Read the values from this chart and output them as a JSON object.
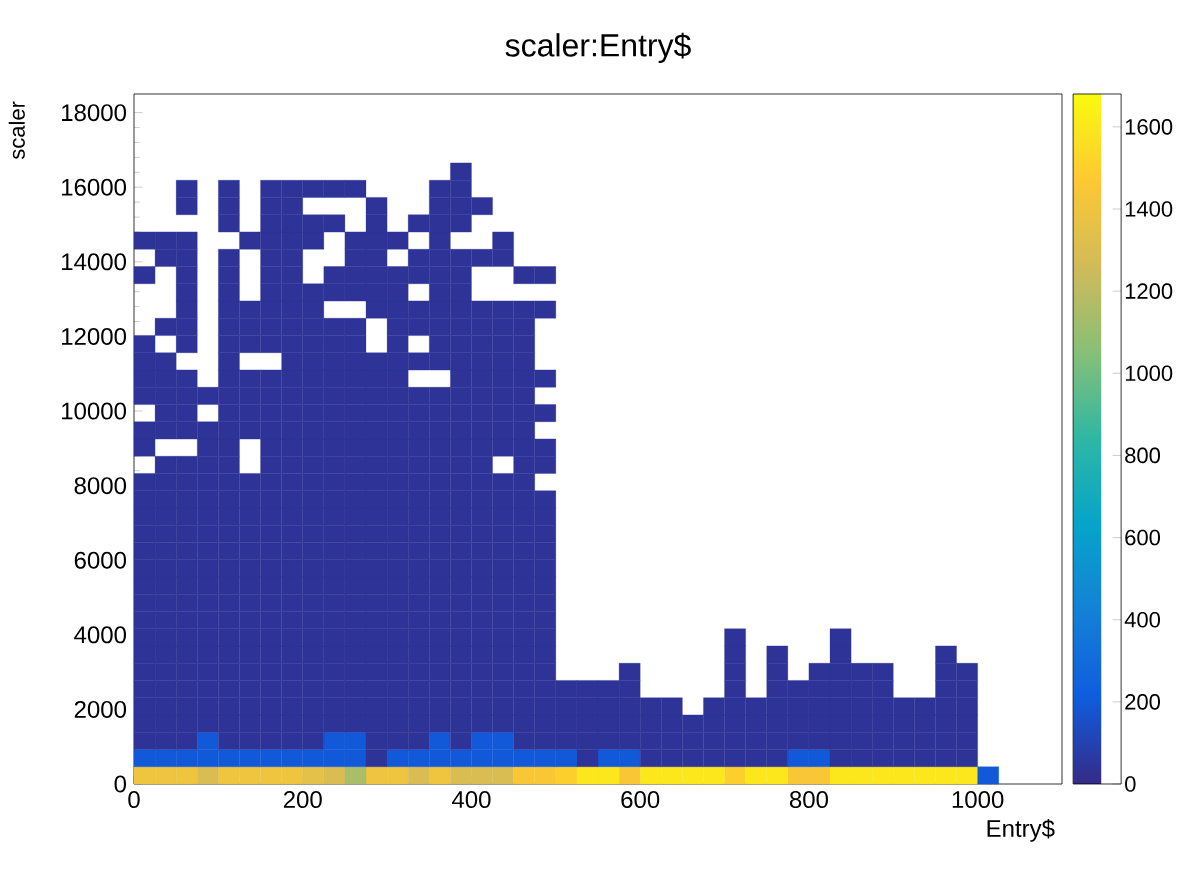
{
  "chart_data": {
    "type": "scatter",
    "title": "scaler:Entry$",
    "xlabel": "Entry$",
    "ylabel": "scaler",
    "marker": "square",
    "xlim": [
      0,
      1100
    ],
    "xticks": [
      0,
      200,
      400,
      600,
      800,
      1000
    ],
    "ylim": [
      0,
      18500
    ],
    "yticks": [
      0,
      2000,
      4000,
      6000,
      8000,
      10000,
      12000,
      14000,
      16000,
      18000
    ],
    "clim": [
      0,
      1680
    ],
    "cticks": [
      0,
      200,
      400,
      600,
      800,
      1000,
      1200,
      1400,
      1600
    ],
    "series": [
      {
        "x": [
          12.5,
          37.5,
          62.5,
          112.5,
          137.5,
          162.5,
          187.5,
          287.5,
          312.5,
          362.5
        ],
        "values": [
          231,
          231,
          231,
          231,
          231,
          231,
          231,
          231,
          231,
          231
        ],
        "cvalues": [
          1400,
          1400,
          1400,
          1400,
          1400,
          1400,
          1400,
          1400,
          1400,
          1400
        ]
      },
      {
        "x": [
          87.5,
          237.5,
          337.5,
          387.5,
          412.5,
          437.5
        ],
        "values": [
          231,
          231,
          231,
          231,
          231,
          231
        ],
        "cvalues": [
          1300,
          1300,
          1300,
          1300,
          1300,
          1300
        ]
      },
      {
        "x": [
          212.5
        ],
        "values": [
          231
        ],
        "cvalues": [
          1350
        ]
      },
      {
        "x": [
          262.5
        ],
        "values": [
          231
        ],
        "cvalues": [
          1150
        ]
      },
      {
        "x": [
          462.5,
          487.5,
          587.5,
          787.5,
          812.5
        ],
        "values": [
          231,
          231,
          231,
          231,
          231
        ],
        "cvalues": [
          1450,
          1450,
          1450,
          1450,
          1450
        ]
      },
      {
        "x": [
          512.5,
          712.5
        ],
        "values": [
          231,
          231
        ],
        "cvalues": [
          1500,
          1500
        ]
      },
      {
        "x": [
          537.5,
          562.5,
          612.5,
          637.5,
          662.5,
          687.5,
          737.5,
          762.5,
          837.5,
          862.5,
          887.5,
          912.5,
          937.5,
          962.5,
          987.5
        ],
        "values": [
          231,
          231,
          231,
          231,
          231,
          231,
          231,
          231,
          231,
          231,
          231,
          231,
          231,
          231,
          231
        ],
        "cvalues": [
          1600,
          1600,
          1600,
          1600,
          1600,
          1600,
          1600,
          1600,
          1600,
          1600,
          1600,
          1600,
          1600,
          1600,
          1600
        ]
      },
      {
        "x": [
          1012.5
        ],
        "values": [
          231
        ],
        "cvalues": [
          200
        ]
      },
      {
        "x": [
          12.5,
          37.5,
          62.5,
          87.5,
          112.5,
          137.5,
          162.5,
          187.5,
          212.5,
          237.5,
          262.5,
          312.5,
          337.5,
          362.5,
          387.5,
          412.5,
          437.5,
          462.5,
          487.5,
          512.5,
          562.5,
          587.5,
          787.5,
          812.5
        ],
        "values": [
          694,
          694,
          694,
          694,
          694,
          694,
          694,
          694,
          694,
          694,
          694,
          694,
          694,
          694,
          694,
          694,
          694,
          694,
          694,
          694,
          694,
          694,
          694,
          694
        ],
        "cvalues": [
          200,
          200,
          200,
          200,
          200,
          200,
          200,
          200,
          200,
          200,
          200,
          200,
          200,
          200,
          200,
          200,
          200,
          200,
          200,
          200,
          200,
          200,
          200,
          200
        ]
      },
      {
        "x": [
          287.5,
          537.5,
          612.5,
          637.5,
          662.5,
          687.5,
          712.5,
          737.5,
          762.5,
          837.5,
          862.5,
          887.5,
          912.5,
          937.5,
          962.5,
          987.5
        ],
        "values": [
          694,
          694,
          694,
          694,
          694,
          694,
          694,
          694,
          694,
          694,
          694,
          694,
          694,
          694,
          694,
          694
        ],
        "cvalues": [
          40,
          40,
          40,
          40,
          40,
          40,
          40,
          40,
          40,
          40,
          40,
          40,
          40,
          40,
          40,
          40
        ]
      },
      {
        "x": [
          87.5,
          237.5,
          262.5,
          362.5,
          412.5,
          437.5
        ],
        "values": [
          1156,
          1156,
          1156,
          1156,
          1156,
          1156
        ],
        "cvalues": [
          200,
          200,
          200,
          200,
          200,
          200
        ]
      },
      {
        "x": [
          12.5,
          37.5,
          62.5,
          112.5,
          137.5,
          162.5,
          187.5,
          212.5,
          287.5,
          312.5,
          337.5,
          387.5,
          462.5,
          487.5,
          512.5,
          537.5,
          562.5,
          587.5,
          612.5,
          637.5,
          662.5,
          687.5,
          712.5,
          737.5,
          762.5,
          787.5,
          812.5,
          837.5,
          862.5,
          887.5,
          912.5,
          937.5,
          962.5,
          987.5
        ],
        "values": [
          1156,
          1156,
          1156,
          1156,
          1156,
          1156,
          1156,
          1156,
          1156,
          1156,
          1156,
          1156,
          1156,
          1156,
          1156,
          1156,
          1156,
          1156,
          1156,
          1156,
          1156,
          1156,
          1156,
          1156,
          1156,
          1156,
          1156,
          1156,
          1156,
          1156,
          1156,
          1156,
          1156,
          1156
        ],
        "cvalues": [
          40,
          40,
          40,
          40,
          40,
          40,
          40,
          40,
          40,
          40,
          40,
          40,
          40,
          40,
          40,
          40,
          40,
          40,
          40,
          40,
          40,
          40,
          40,
          40,
          40,
          40,
          40,
          40,
          40,
          40,
          40,
          40,
          40,
          40
        ]
      },
      {
        "x": [
          12.5,
          37.5,
          62.5,
          87.5,
          112.5,
          137.5,
          162.5,
          187.5,
          212.5,
          237.5,
          262.5,
          287.5,
          312.5,
          337.5,
          362.5,
          387.5,
          412.5,
          437.5,
          462.5,
          487.5,
          512.5,
          537.5,
          562.5,
          587.5,
          612.5,
          637.5,
          662.5,
          687.5,
          712.5,
          737.5,
          762.5,
          787.5,
          812.5,
          837.5,
          862.5,
          887.5,
          912.5,
          937.5,
          962.5,
          987.5
        ],
        "values": [
          1619,
          1619,
          1619,
          1619,
          1619,
          1619,
          1619,
          1619,
          1619,
          1619,
          1619,
          1619,
          1619,
          1619,
          1619,
          1619,
          1619,
          1619,
          1619,
          1619,
          1619,
          1619,
          1619,
          1619,
          1619,
          1619,
          1619,
          1619,
          1619,
          1619,
          1619,
          1619,
          1619,
          1619,
          1619,
          1619,
          1619,
          1619,
          1619,
          1619
        ],
        "cvalues": [
          40,
          40,
          40,
          40,
          40,
          40,
          40,
          40,
          40,
          40,
          40,
          40,
          40,
          40,
          40,
          40,
          40,
          40,
          40,
          40,
          40,
          40,
          40,
          40,
          40,
          40,
          40,
          40,
          40,
          40,
          40,
          40,
          40,
          40,
          40,
          40,
          40,
          40,
          40,
          40
        ]
      },
      {
        "x": [
          12.5,
          37.5,
          62.5,
          87.5,
          112.5,
          137.5,
          162.5,
          187.5,
          212.5,
          237.5,
          262.5,
          287.5,
          312.5,
          337.5,
          362.5,
          387.5,
          412.5,
          437.5,
          462.5,
          487.5,
          512.5,
          537.5,
          562.5,
          587.5,
          612.5,
          637.5,
          687.5,
          712.5,
          737.5,
          762.5,
          787.5,
          812.5,
          837.5,
          862.5,
          887.5,
          912.5,
          937.5,
          962.5,
          987.5
        ],
        "values": [
          2081,
          2081,
          2081,
          2081,
          2081,
          2081,
          2081,
          2081,
          2081,
          2081,
          2081,
          2081,
          2081,
          2081,
          2081,
          2081,
          2081,
          2081,
          2081,
          2081,
          2081,
          2081,
          2081,
          2081,
          2081,
          2081,
          2081,
          2081,
          2081,
          2081,
          2081,
          2081,
          2081,
          2081,
          2081,
          2081,
          2081,
          2081,
          2081
        ],
        "cvalues": [
          40,
          40,
          40,
          40,
          40,
          40,
          40,
          40,
          40,
          40,
          40,
          40,
          40,
          40,
          40,
          40,
          40,
          40,
          40,
          40,
          40,
          40,
          40,
          40,
          40,
          40,
          40,
          40,
          40,
          40,
          40,
          40,
          40,
          40,
          40,
          40,
          40,
          40,
          40
        ]
      },
      {
        "x": [
          12.5,
          37.5,
          62.5,
          87.5,
          112.5,
          137.5,
          162.5,
          187.5,
          212.5,
          237.5,
          262.5,
          287.5,
          312.5,
          337.5,
          362.5,
          387.5,
          412.5,
          437.5,
          462.5,
          487.5,
          512.5,
          537.5,
          562.5,
          587.5,
          712.5,
          762.5,
          787.5,
          812.5,
          837.5,
          862.5,
          887.5,
          962.5,
          987.5
        ],
        "values": [
          2544,
          2544,
          2544,
          2544,
          2544,
          2544,
          2544,
          2544,
          2544,
          2544,
          2544,
          2544,
          2544,
          2544,
          2544,
          2544,
          2544,
          2544,
          2544,
          2544,
          2544,
          2544,
          2544,
          2544,
          2544,
          2544,
          2544,
          2544,
          2544,
          2544,
          2544,
          2544,
          2544
        ],
        "cvalues": [
          40,
          40,
          40,
          40,
          40,
          40,
          40,
          40,
          40,
          40,
          40,
          40,
          40,
          40,
          40,
          40,
          40,
          40,
          40,
          40,
          40,
          40,
          40,
          40,
          40,
          40,
          40,
          40,
          40,
          40,
          40,
          40,
          40
        ]
      },
      {
        "x": [
          12.5,
          37.5,
          62.5,
          87.5,
          112.5,
          137.5,
          162.5,
          187.5,
          212.5,
          237.5,
          262.5,
          287.5,
          312.5,
          337.5,
          362.5,
          387.5,
          412.5,
          437.5,
          462.5,
          487.5,
          587.5,
          712.5,
          762.5,
          812.5,
          837.5,
          862.5,
          887.5,
          962.5,
          987.5
        ],
        "values": [
          3006,
          3006,
          3006,
          3006,
          3006,
          3006,
          3006,
          3006,
          3006,
          3006,
          3006,
          3006,
          3006,
          3006,
          3006,
          3006,
          3006,
          3006,
          3006,
          3006,
          3006,
          3006,
          3006,
          3006,
          3006,
          3006,
          3006,
          3006,
          3006
        ],
        "cvalues": [
          40,
          40,
          40,
          40,
          40,
          40,
          40,
          40,
          40,
          40,
          40,
          40,
          40,
          40,
          40,
          40,
          40,
          40,
          40,
          40,
          40,
          40,
          40,
          40,
          40,
          40,
          40,
          40,
          40
        ]
      },
      {
        "x": [
          12.5,
          37.5,
          62.5,
          87.5,
          112.5,
          137.5,
          162.5,
          187.5,
          212.5,
          237.5,
          262.5,
          287.5,
          312.5,
          337.5,
          362.5,
          387.5,
          412.5,
          437.5,
          462.5,
          487.5,
          712.5,
          762.5,
          837.5,
          962.5
        ],
        "values": [
          3469,
          3469,
          3469,
          3469,
          3469,
          3469,
          3469,
          3469,
          3469,
          3469,
          3469,
          3469,
          3469,
          3469,
          3469,
          3469,
          3469,
          3469,
          3469,
          3469,
          3469,
          3469,
          3469,
          3469
        ],
        "cvalues": [
          40,
          40,
          40,
          40,
          40,
          40,
          40,
          40,
          40,
          40,
          40,
          40,
          40,
          40,
          40,
          40,
          40,
          40,
          40,
          40,
          40,
          40,
          40,
          40
        ]
      },
      {
        "x": [
          12.5,
          37.5,
          62.5,
          87.5,
          112.5,
          137.5,
          162.5,
          187.5,
          212.5,
          237.5,
          262.5,
          287.5,
          312.5,
          337.5,
          362.5,
          387.5,
          412.5,
          437.5,
          462.5,
          487.5,
          712.5,
          837.5
        ],
        "values": [
          3931,
          3931,
          3931,
          3931,
          3931,
          3931,
          3931,
          3931,
          3931,
          3931,
          3931,
          3931,
          3931,
          3931,
          3931,
          3931,
          3931,
          3931,
          3931,
          3931,
          3931,
          3931
        ],
        "cvalues": [
          40,
          40,
          40,
          40,
          40,
          40,
          40,
          40,
          40,
          40,
          40,
          40,
          40,
          40,
          40,
          40,
          40,
          40,
          40,
          40,
          40,
          40
        ]
      },
      {
        "x": [
          12.5,
          37.5,
          62.5,
          87.5,
          112.5,
          137.5,
          162.5,
          187.5,
          212.5,
          237.5,
          262.5,
          287.5,
          312.5,
          337.5,
          362.5,
          387.5,
          412.5,
          437.5,
          462.5,
          487.5
        ],
        "values": [
          4394,
          4394,
          4394,
          4394,
          4394,
          4394,
          4394,
          4394,
          4394,
          4394,
          4394,
          4394,
          4394,
          4394,
          4394,
          4394,
          4394,
          4394,
          4394,
          4394
        ],
        "cvalues": [
          40,
          40,
          40,
          40,
          40,
          40,
          40,
          40,
          40,
          40,
          40,
          40,
          40,
          40,
          40,
          40,
          40,
          40,
          40,
          40
        ]
      },
      {
        "x": [
          12.5,
          37.5,
          62.5,
          87.5,
          112.5,
          137.5,
          162.5,
          187.5,
          212.5,
          237.5,
          262.5,
          287.5,
          312.5,
          337.5,
          362.5,
          387.5,
          412.5,
          437.5,
          462.5,
          487.5
        ],
        "values": [
          4856,
          4856,
          4856,
          4856,
          4856,
          4856,
          4856,
          4856,
          4856,
          4856,
          4856,
          4856,
          4856,
          4856,
          4856,
          4856,
          4856,
          4856,
          4856,
          4856
        ],
        "cvalues": [
          40,
          40,
          40,
          40,
          40,
          40,
          40,
          40,
          40,
          40,
          40,
          40,
          40,
          40,
          40,
          40,
          40,
          40,
          40,
          40
        ]
      },
      {
        "x": [
          12.5,
          37.5,
          62.5,
          87.5,
          112.5,
          137.5,
          162.5,
          187.5,
          212.5,
          237.5,
          262.5,
          287.5,
          312.5,
          337.5,
          362.5,
          387.5,
          412.5,
          437.5,
          462.5,
          487.5
        ],
        "values": [
          5319,
          5319,
          5319,
          5319,
          5319,
          5319,
          5319,
          5319,
          5319,
          5319,
          5319,
          5319,
          5319,
          5319,
          5319,
          5319,
          5319,
          5319,
          5319,
          5319
        ],
        "cvalues": [
          40,
          40,
          40,
          40,
          40,
          40,
          40,
          40,
          40,
          40,
          40,
          40,
          40,
          40,
          40,
          40,
          40,
          40,
          40,
          40
        ]
      },
      {
        "x": [
          12.5,
          37.5,
          62.5,
          87.5,
          112.5,
          137.5,
          162.5,
          187.5,
          212.5,
          237.5,
          262.5,
          287.5,
          312.5,
          337.5,
          362.5,
          387.5,
          412.5,
          437.5,
          462.5,
          487.5
        ],
        "values": [
          5781,
          5781,
          5781,
          5781,
          5781,
          5781,
          5781,
          5781,
          5781,
          5781,
          5781,
          5781,
          5781,
          5781,
          5781,
          5781,
          5781,
          5781,
          5781,
          5781
        ],
        "cvalues": [
          40,
          40,
          40,
          40,
          40,
          40,
          40,
          40,
          40,
          40,
          40,
          40,
          40,
          40,
          40,
          40,
          40,
          40,
          40,
          40
        ]
      },
      {
        "x": [
          12.5,
          37.5,
          62.5,
          87.5,
          112.5,
          137.5,
          162.5,
          187.5,
          212.5,
          237.5,
          262.5,
          287.5,
          312.5,
          337.5,
          362.5,
          387.5,
          412.5,
          437.5,
          462.5,
          487.5
        ],
        "values": [
          6244,
          6244,
          6244,
          6244,
          6244,
          6244,
          6244,
          6244,
          6244,
          6244,
          6244,
          6244,
          6244,
          6244,
          6244,
          6244,
          6244,
          6244,
          6244,
          6244
        ],
        "cvalues": [
          40,
          40,
          40,
          40,
          40,
          40,
          40,
          40,
          40,
          40,
          40,
          40,
          40,
          40,
          40,
          40,
          40,
          40,
          40,
          40
        ]
      },
      {
        "x": [
          12.5,
          37.5,
          62.5,
          87.5,
          112.5,
          137.5,
          162.5,
          187.5,
          212.5,
          237.5,
          262.5,
          287.5,
          312.5,
          337.5,
          362.5,
          387.5,
          412.5,
          437.5,
          462.5,
          487.5
        ],
        "values": [
          6706,
          6706,
          6706,
          6706,
          6706,
          6706,
          6706,
          6706,
          6706,
          6706,
          6706,
          6706,
          6706,
          6706,
          6706,
          6706,
          6706,
          6706,
          6706,
          6706
        ],
        "cvalues": [
          40,
          40,
          40,
          40,
          40,
          40,
          40,
          40,
          40,
          40,
          40,
          40,
          40,
          40,
          40,
          40,
          40,
          40,
          40,
          40
        ]
      },
      {
        "x": [
          12.5,
          37.5,
          62.5,
          87.5,
          112.5,
          137.5,
          162.5,
          187.5,
          212.5,
          237.5,
          262.5,
          287.5,
          312.5,
          337.5,
          362.5,
          387.5,
          412.5,
          437.5,
          462.5,
          487.5
        ],
        "values": [
          7169,
          7169,
          7169,
          7169,
          7169,
          7169,
          7169,
          7169,
          7169,
          7169,
          7169,
          7169,
          7169,
          7169,
          7169,
          7169,
          7169,
          7169,
          7169,
          7169
        ],
        "cvalues": [
          40,
          40,
          40,
          40,
          40,
          40,
          40,
          40,
          40,
          40,
          40,
          40,
          40,
          40,
          40,
          40,
          40,
          40,
          40,
          40
        ]
      },
      {
        "x": [
          12.5,
          37.5,
          62.5,
          87.5,
          112.5,
          137.5,
          162.5,
          187.5,
          212.5,
          237.5,
          262.5,
          287.5,
          312.5,
          337.5,
          362.5,
          387.5,
          412.5,
          437.5,
          462.5,
          487.5
        ],
        "values": [
          7631,
          7631,
          7631,
          7631,
          7631,
          7631,
          7631,
          7631,
          7631,
          7631,
          7631,
          7631,
          7631,
          7631,
          7631,
          7631,
          7631,
          7631,
          7631,
          7631
        ],
        "cvalues": [
          40,
          40,
          40,
          40,
          40,
          40,
          40,
          40,
          40,
          40,
          40,
          40,
          40,
          40,
          40,
          40,
          40,
          40,
          40,
          40
        ]
      },
      {
        "x": [
          12.5,
          37.5,
          62.5,
          87.5,
          112.5,
          137.5,
          162.5,
          187.5,
          212.5,
          237.5,
          262.5,
          287.5,
          312.5,
          337.5,
          362.5,
          387.5,
          412.5,
          437.5,
          462.5
        ],
        "values": [
          8094,
          8094,
          8094,
          8094,
          8094,
          8094,
          8094,
          8094,
          8094,
          8094,
          8094,
          8094,
          8094,
          8094,
          8094,
          8094,
          8094,
          8094,
          8094
        ],
        "cvalues": [
          40,
          40,
          40,
          40,
          40,
          40,
          40,
          40,
          40,
          40,
          40,
          40,
          40,
          40,
          40,
          40,
          40,
          40,
          40
        ]
      },
      {
        "x": [
          37.5,
          62.5,
          87.5,
          112.5,
          162.5,
          187.5,
          212.5,
          237.5,
          262.5,
          287.5,
          312.5,
          337.5,
          362.5,
          387.5,
          412.5,
          462.5,
          487.5
        ],
        "values": [
          8556,
          8556,
          8556,
          8556,
          8556,
          8556,
          8556,
          8556,
          8556,
          8556,
          8556,
          8556,
          8556,
          8556,
          8556,
          8556,
          8556
        ],
        "cvalues": [
          40,
          40,
          40,
          40,
          40,
          40,
          40,
          40,
          40,
          40,
          40,
          40,
          40,
          40,
          40,
          40,
          40
        ]
      },
      {
        "x": [
          12.5,
          87.5,
          112.5,
          162.5,
          187.5,
          212.5,
          237.5,
          262.5,
          287.5,
          312.5,
          337.5,
          362.5,
          387.5,
          412.5,
          437.5,
          462.5,
          487.5
        ],
        "values": [
          9019,
          9019,
          9019,
          9019,
          9019,
          9019,
          9019,
          9019,
          9019,
          9019,
          9019,
          9019,
          9019,
          9019,
          9019,
          9019,
          9019
        ],
        "cvalues": [
          40,
          40,
          40,
          40,
          40,
          40,
          40,
          40,
          40,
          40,
          40,
          40,
          40,
          40,
          40,
          40,
          40
        ]
      },
      {
        "x": [
          12.5,
          37.5,
          62.5,
          87.5,
          112.5,
          137.5,
          162.5,
          187.5,
          212.5,
          237.5,
          262.5,
          287.5,
          312.5,
          337.5,
          362.5,
          387.5,
          412.5,
          437.5,
          462.5
        ],
        "values": [
          9481,
          9481,
          9481,
          9481,
          9481,
          9481,
          9481,
          9481,
          9481,
          9481,
          9481,
          9481,
          9481,
          9481,
          9481,
          9481,
          9481,
          9481,
          9481
        ],
        "cvalues": [
          40,
          40,
          40,
          40,
          40,
          40,
          40,
          40,
          40,
          40,
          40,
          40,
          40,
          40,
          40,
          40,
          40,
          40,
          40
        ]
      },
      {
        "x": [
          37.5,
          62.5,
          112.5,
          137.5,
          162.5,
          187.5,
          212.5,
          237.5,
          262.5,
          287.5,
          312.5,
          337.5,
          362.5,
          387.5,
          412.5,
          437.5,
          462.5,
          487.5
        ],
        "values": [
          9944,
          9944,
          9944,
          9944,
          9944,
          9944,
          9944,
          9944,
          9944,
          9944,
          9944,
          9944,
          9944,
          9944,
          9944,
          9944,
          9944,
          9944
        ],
        "cvalues": [
          40,
          40,
          40,
          40,
          40,
          40,
          40,
          40,
          40,
          40,
          40,
          40,
          40,
          40,
          40,
          40,
          40,
          40
        ]
      },
      {
        "x": [
          12.5,
          37.5,
          62.5,
          87.5,
          112.5,
          137.5,
          162.5,
          187.5,
          212.5,
          237.5,
          262.5,
          287.5,
          312.5,
          337.5,
          362.5,
          387.5,
          412.5,
          437.5,
          462.5
        ],
        "values": [
          10406,
          10406,
          10406,
          10406,
          10406,
          10406,
          10406,
          10406,
          10406,
          10406,
          10406,
          10406,
          10406,
          10406,
          10406,
          10406,
          10406,
          10406,
          10406
        ],
        "cvalues": [
          40,
          40,
          40,
          40,
          40,
          40,
          40,
          40,
          40,
          40,
          40,
          40,
          40,
          40,
          40,
          40,
          40,
          40,
          40
        ]
      },
      {
        "x": [
          12.5,
          37.5,
          62.5,
          112.5,
          137.5,
          162.5,
          187.5,
          212.5,
          237.5,
          262.5,
          287.5,
          312.5,
          387.5,
          412.5,
          437.5,
          462.5,
          487.5
        ],
        "values": [
          10869,
          10869,
          10869,
          10869,
          10869,
          10869,
          10869,
          10869,
          10869,
          10869,
          10869,
          10869,
          10869,
          10869,
          10869,
          10869,
          10869
        ],
        "cvalues": [
          40,
          40,
          40,
          40,
          40,
          40,
          40,
          40,
          40,
          40,
          40,
          40,
          40,
          40,
          40,
          40,
          40
        ]
      },
      {
        "x": [
          12.5,
          37.5,
          112.5,
          187.5,
          212.5,
          237.5,
          262.5,
          287.5,
          312.5,
          337.5,
          362.5,
          387.5,
          412.5,
          437.5,
          462.5
        ],
        "values": [
          11331,
          11331,
          11331,
          11331,
          11331,
          11331,
          11331,
          11331,
          11331,
          11331,
          11331,
          11331,
          11331,
          11331,
          11331
        ],
        "cvalues": [
          40,
          40,
          40,
          40,
          40,
          40,
          40,
          40,
          40,
          40,
          40,
          40,
          40,
          40,
          40
        ]
      },
      {
        "x": [
          12.5,
          62.5,
          112.5,
          137.5,
          162.5,
          187.5,
          212.5,
          237.5,
          262.5,
          312.5,
          362.5,
          387.5,
          412.5,
          437.5,
          462.5
        ],
        "values": [
          11794,
          11794,
          11794,
          11794,
          11794,
          11794,
          11794,
          11794,
          11794,
          11794,
          11794,
          11794,
          11794,
          11794,
          11794
        ],
        "cvalues": [
          40,
          40,
          40,
          40,
          40,
          40,
          40,
          40,
          40,
          40,
          40,
          40,
          40,
          40,
          40
        ]
      },
      {
        "x": [
          37.5,
          62.5,
          112.5,
          137.5,
          162.5,
          187.5,
          212.5,
          237.5,
          262.5,
          312.5,
          337.5,
          362.5,
          387.5,
          412.5,
          437.5,
          462.5
        ],
        "values": [
          12256,
          12256,
          12256,
          12256,
          12256,
          12256,
          12256,
          12256,
          12256,
          12256,
          12256,
          12256,
          12256,
          12256,
          12256,
          12256
        ],
        "cvalues": [
          40,
          40,
          40,
          40,
          40,
          40,
          40,
          40,
          40,
          40,
          40,
          40,
          40,
          40,
          40,
          40
        ]
      },
      {
        "x": [
          62.5,
          112.5,
          137.5,
          162.5,
          187.5,
          212.5,
          287.5,
          312.5,
          337.5,
          362.5,
          387.5,
          412.5,
          437.5,
          462.5,
          487.5
        ],
        "values": [
          12719,
          12719,
          12719,
          12719,
          12719,
          12719,
          12719,
          12719,
          12719,
          12719,
          12719,
          12719,
          12719,
          12719,
          12719
        ],
        "cvalues": [
          40,
          40,
          40,
          40,
          40,
          40,
          40,
          40,
          40,
          40,
          40,
          40,
          40,
          40,
          40
        ]
      },
      {
        "x": [
          62.5,
          112.5,
          162.5,
          187.5,
          212.5,
          237.5,
          262.5,
          287.5,
          312.5,
          362.5,
          387.5
        ],
        "values": [
          13181,
          13181,
          13181,
          13181,
          13181,
          13181,
          13181,
          13181,
          13181,
          13181,
          13181
        ],
        "cvalues": [
          40,
          40,
          40,
          40,
          40,
          40,
          40,
          40,
          40,
          40,
          40
        ]
      },
      {
        "x": [
          12.5,
          62.5,
          112.5,
          162.5,
          187.5,
          237.5,
          262.5,
          287.5,
          312.5,
          337.5,
          362.5,
          387.5,
          462.5,
          487.5
        ],
        "values": [
          13644,
          13644,
          13644,
          13644,
          13644,
          13644,
          13644,
          13644,
          13644,
          13644,
          13644,
          13644,
          13644,
          13644
        ],
        "cvalues": [
          40,
          40,
          40,
          40,
          40,
          40,
          40,
          40,
          40,
          40,
          40,
          40,
          40,
          40
        ]
      },
      {
        "x": [
          37.5,
          62.5,
          112.5,
          162.5,
          187.5,
          262.5,
          287.5,
          337.5,
          362.5,
          387.5,
          412.5,
          437.5
        ],
        "values": [
          14106,
          14106,
          14106,
          14106,
          14106,
          14106,
          14106,
          14106,
          14106,
          14106,
          14106,
          14106
        ],
        "cvalues": [
          40,
          40,
          40,
          40,
          40,
          40,
          40,
          40,
          40,
          40,
          40,
          40
        ]
      },
      {
        "x": [
          12.5,
          37.5,
          62.5,
          137.5,
          162.5,
          187.5,
          212.5,
          262.5,
          287.5,
          312.5,
          362.5,
          437.5
        ],
        "values": [
          14569,
          14569,
          14569,
          14569,
          14569,
          14569,
          14569,
          14569,
          14569,
          14569,
          14569,
          14569
        ],
        "cvalues": [
          40,
          40,
          40,
          40,
          40,
          40,
          40,
          40,
          40,
          40,
          40,
          40
        ]
      },
      {
        "x": [
          112.5,
          162.5,
          187.5,
          212.5,
          237.5,
          287.5,
          337.5,
          362.5,
          387.5
        ],
        "values": [
          15031,
          15031,
          15031,
          15031,
          15031,
          15031,
          15031,
          15031,
          15031
        ],
        "cvalues": [
          40,
          40,
          40,
          40,
          40,
          40,
          40,
          40,
          40
        ]
      },
      {
        "x": [
          62.5,
          112.5,
          162.5,
          187.5,
          287.5,
          362.5,
          387.5,
          412.5
        ],
        "values": [
          15494,
          15494,
          15494,
          15494,
          15494,
          15494,
          15494,
          15494
        ],
        "cvalues": [
          40,
          40,
          40,
          40,
          40,
          40,
          40,
          40
        ]
      },
      {
        "x": [
          62.5,
          112.5,
          162.5,
          187.5,
          212.5,
          237.5,
          262.5,
          362.5,
          387.5
        ],
        "values": [
          15956,
          15956,
          15956,
          15956,
          15956,
          15956,
          15956,
          15956,
          15956
        ],
        "cvalues": [
          40,
          40,
          40,
          40,
          40,
          40,
          40,
          40,
          40
        ]
      },
      {
        "x": [
          387.5
        ],
        "values": [
          16419
        ],
        "cvalues": [
          40
        ]
      }
    ]
  }
}
